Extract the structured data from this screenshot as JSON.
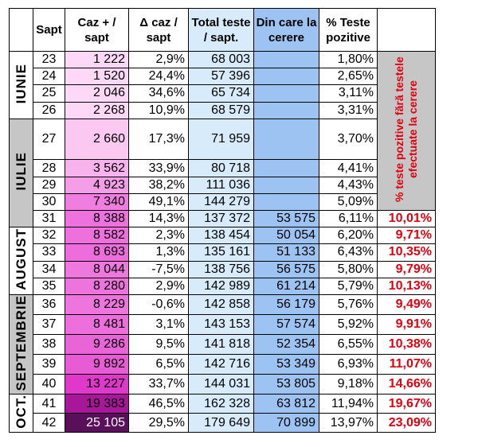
{
  "header": {
    "week": "Sapt",
    "cases": "Caz + / sapt",
    "delta": "Δ caz / sapt",
    "tests": "Total teste / sapt.",
    "on_request": "Din care la cerere",
    "positive": "% Teste pozitive"
  },
  "side_note": "% teste pozitive fără testele efectuate la cerere",
  "months": [
    {
      "label": "IUNIE",
      "shade": "white",
      "rows": [
        {
          "week": "23",
          "cases": "1 222",
          "delta": "2,9%",
          "tests": "68 003",
          "on_request": "",
          "positive": "1,80%",
          "excl": "",
          "case_bg": "#fdd9f7"
        },
        {
          "week": "24",
          "cases": "1 520",
          "delta": "24,4%",
          "tests": "57 396",
          "on_request": "",
          "positive": "2,65%",
          "excl": "",
          "case_bg": "#fdd9f7"
        },
        {
          "week": "25",
          "cases": "2 046",
          "delta": "34,6%",
          "tests": "65 734",
          "on_request": "",
          "positive": "3,11%",
          "excl": "",
          "case_bg": "#fdd9f7"
        },
        {
          "week": "26",
          "cases": "2 268",
          "delta": "10,9%",
          "tests": "68 579",
          "on_request": "",
          "positive": "3,31%",
          "excl": "",
          "case_bg": "#fdd9f7"
        }
      ]
    },
    {
      "label": "IULIE",
      "shade": "gray",
      "rows": [
        {
          "week": "27",
          "cases": "2 660",
          "delta": "17,3%",
          "tests": "71 959",
          "on_request": "",
          "positive": "3,70%",
          "excl": "",
          "case_bg": "#fbc8f2"
        },
        {
          "week": "28",
          "cases": "3 562",
          "delta": "33,9%",
          "tests": "80 718",
          "on_request": "",
          "positive": "4,41%",
          "excl": "",
          "case_bg": "#f8b2ec"
        },
        {
          "week": "29",
          "cases": "4 923",
          "delta": "38,2%",
          "tests": "111 036",
          "on_request": "",
          "positive": "4,43%",
          "excl": "",
          "case_bg": "#f59ee8"
        },
        {
          "week": "30",
          "cases": "7 340",
          "delta": "49,1%",
          "tests": "144 279",
          "on_request": "",
          "positive": "5,09%",
          "excl": "",
          "case_bg": "#f07ee0"
        },
        {
          "week": "31",
          "cases": "8 388",
          "delta": "14,3%",
          "tests": "137 372",
          "on_request": "53 575",
          "positive": "6,11%",
          "excl": "10,01%",
          "case_bg": "#ed72dd"
        }
      ]
    },
    {
      "label": "AUGUST",
      "shade": "white",
      "rows": [
        {
          "week": "32",
          "cases": "8 582",
          "delta": "2,3%",
          "tests": "138 454",
          "on_request": "50 054",
          "positive": "6,20%",
          "excl": "9,71%",
          "case_bg": "#ed70dc"
        },
        {
          "week": "33",
          "cases": "8 693",
          "delta": "1,3%",
          "tests": "135 161",
          "on_request": "51 133",
          "positive": "6,43%",
          "excl": "10,35%",
          "case_bg": "#ec6ddb"
        },
        {
          "week": "34",
          "cases": "8 044",
          "delta": "-7,5%",
          "tests": "138 756",
          "on_request": "56 575",
          "positive": "5,80%",
          "excl": "9,79%",
          "case_bg": "#ee78de"
        },
        {
          "week": "35",
          "cases": "8 280",
          "delta": "2,9%",
          "tests": "142 989",
          "on_request": "61 214",
          "positive": "5,79%",
          "excl": "10,13%",
          "case_bg": "#ed74dd"
        }
      ]
    },
    {
      "label": "SEPTEMBRIE",
      "shade": "gray",
      "rows": [
        {
          "week": "36",
          "cases": "8 229",
          "delta": "-0,6%",
          "tests": "142 858",
          "on_request": "56 179",
          "positive": "5,76%",
          "excl": "9,49%",
          "case_bg": "#ed75dd"
        },
        {
          "week": "37",
          "cases": "8 481",
          "delta": "3,1%",
          "tests": "143 153",
          "on_request": "57 574",
          "positive": "5,92%",
          "excl": "9,91%",
          "case_bg": "#ec6fdc"
        },
        {
          "week": "38",
          "cases": "9 286",
          "delta": "9,5%",
          "tests": "141 818",
          "on_request": "52 354",
          "positive": "6,55%",
          "excl": "10,38%",
          "case_bg": "#e964d7"
        },
        {
          "week": "39",
          "cases": "9 892",
          "delta": "6,5%",
          "tests": "142 716",
          "on_request": "53 349",
          "positive": "6,93%",
          "excl": "11,07%",
          "case_bg": "#e75bd4"
        },
        {
          "week": "40",
          "cases": "13 227",
          "delta": "33,7%",
          "tests": "144 031",
          "on_request": "53 805",
          "positive": "9,18%",
          "excl": "14,66%",
          "case_bg": "#e038cb"
        }
      ]
    },
    {
      "label": "OCT.",
      "shade": "white",
      "rows": [
        {
          "week": "41",
          "cases": "19 383",
          "delta": "46,5%",
          "tests": "162 328",
          "on_request": "63 812",
          "positive": "11,94%",
          "excl": "19,67%",
          "case_bg": "#a8179a"
        },
        {
          "week": "42",
          "cases": "25 105",
          "delta": "29,5%",
          "tests": "179 649",
          "on_request": "70 899",
          "positive": "13,97%",
          "excl": "23,09%",
          "case_bg": "#5a0f5a"
        }
      ]
    }
  ]
}
